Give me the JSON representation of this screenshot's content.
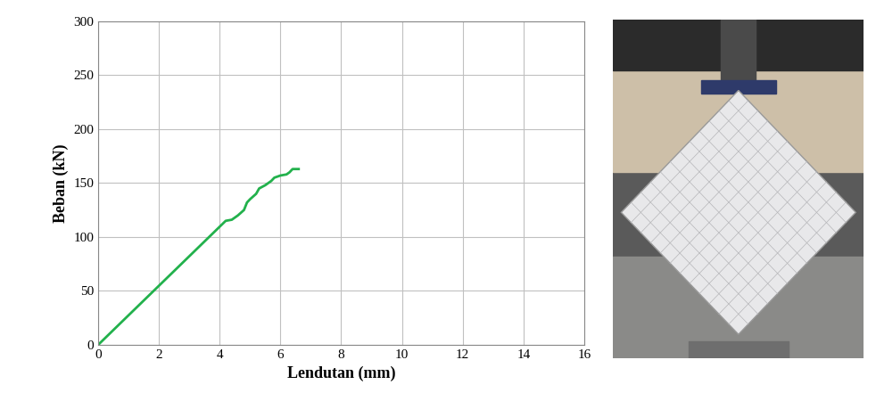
{
  "chart_data": {
    "type": "line",
    "xlabel": "Lendutan (mm)",
    "ylabel": "Beban (kN)",
    "x": [
      0,
      4.2,
      4.4,
      4.6,
      4.8,
      4.9,
      5.0,
      5.2,
      5.3,
      5.5,
      5.7,
      5.8,
      6.0,
      6.2,
      6.3,
      6.4,
      6.6
    ],
    "values": [
      0,
      115,
      116,
      120,
      125,
      132,
      135,
      140,
      145,
      148,
      152,
      155,
      157,
      158,
      160,
      163,
      163
    ],
    "color": "#22b14c",
    "xlim": [
      0,
      16
    ],
    "xticks": [
      0,
      2,
      4,
      6,
      8,
      10,
      12,
      14,
      16
    ],
    "ylim": [
      0,
      300
    ],
    "yticks": [
      0,
      50,
      100,
      150,
      200,
      250,
      300
    ],
    "grid": true
  }
}
